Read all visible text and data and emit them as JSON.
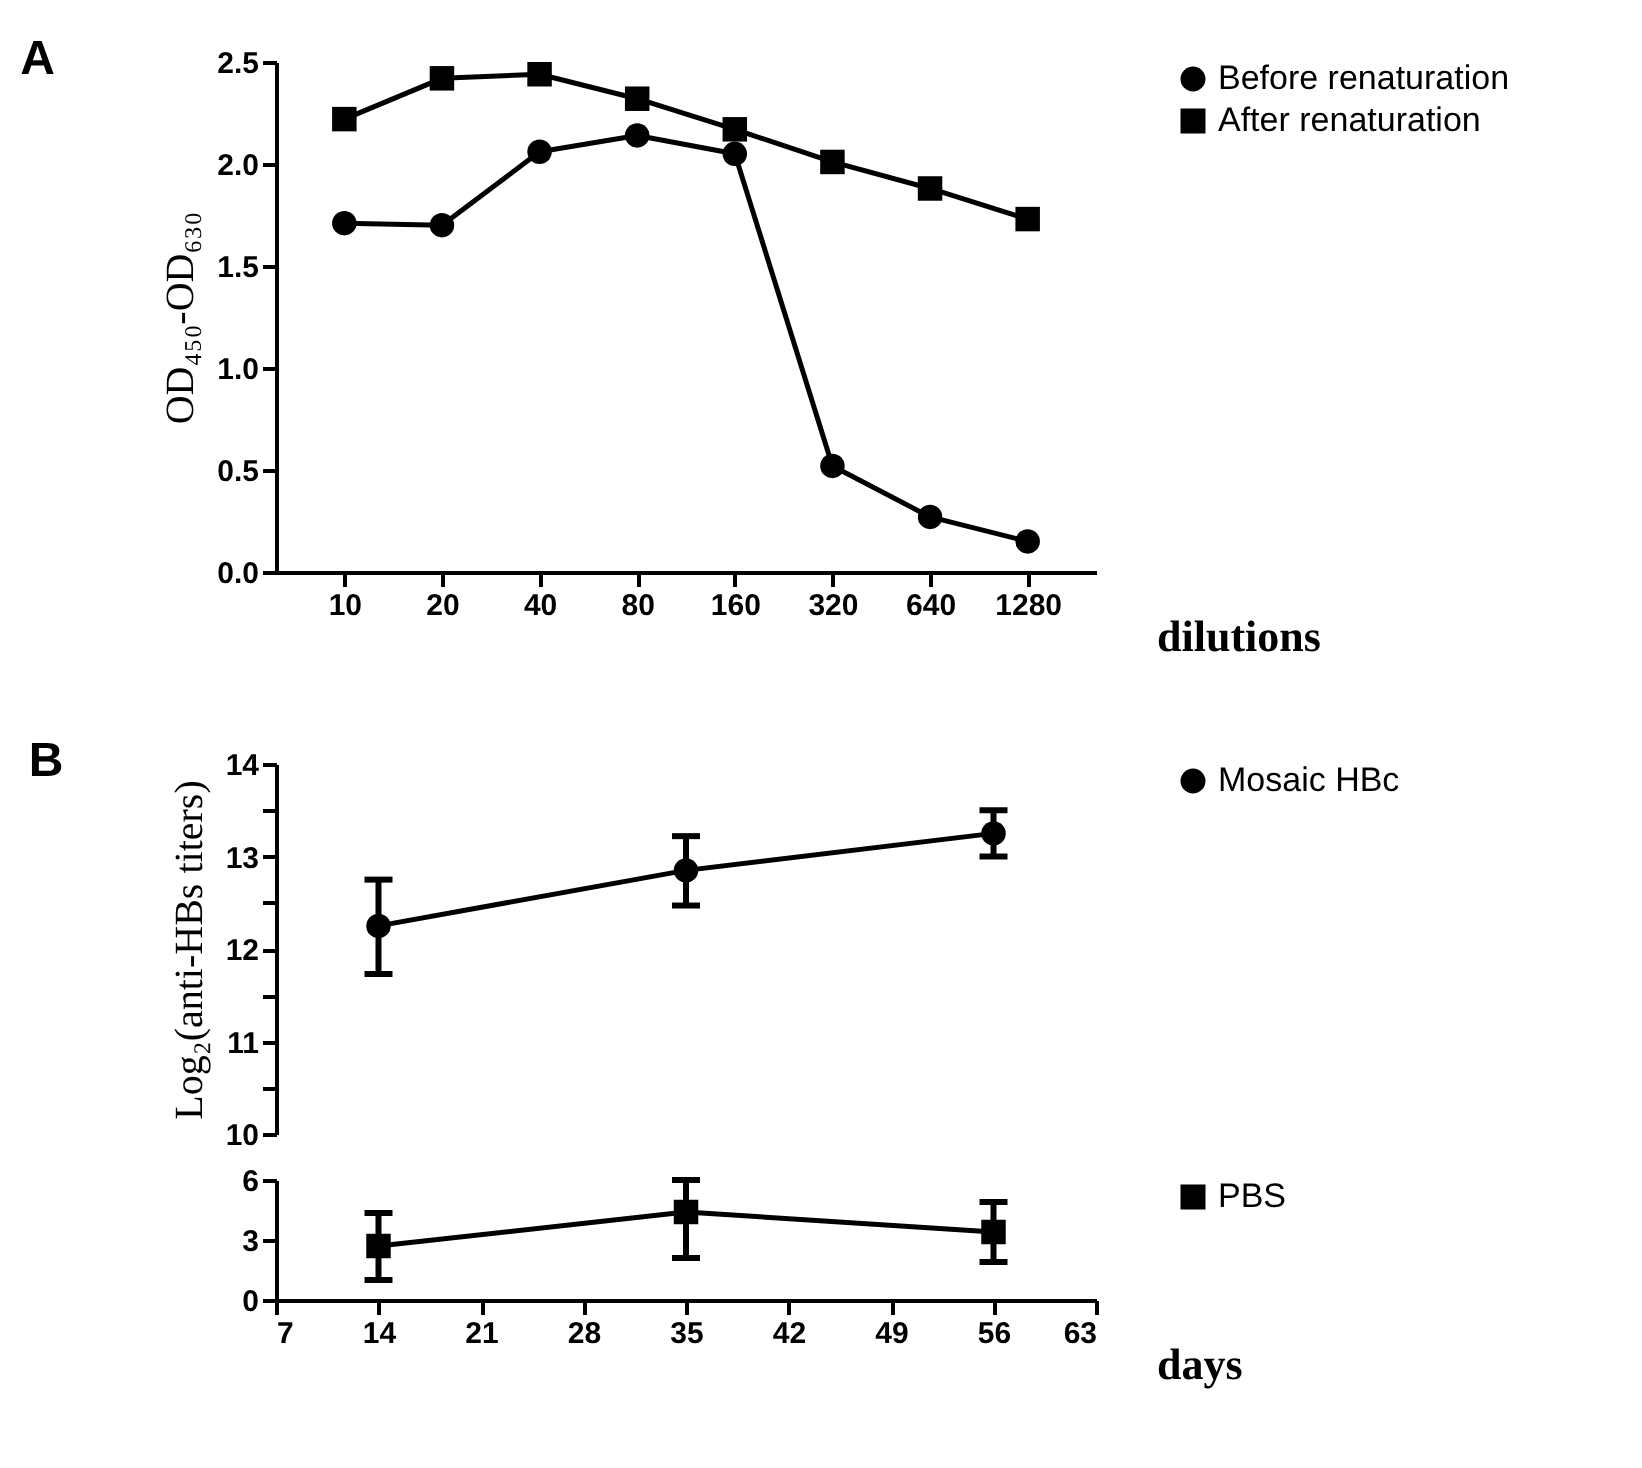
{
  "chart_data": [
    {
      "type": "line",
      "title": "A",
      "xlabel": "dilutions",
      "ylabel": "OD₄₅₀-OD₆₃₀",
      "categories": [
        "10",
        "20",
        "40",
        "80",
        "160",
        "320",
        "640",
        "1280"
      ],
      "ylim": [
        0,
        2.5
      ],
      "yticks": [
        {
          "value": 0,
          "label": "0.0"
        },
        0.5,
        {
          "value": 1,
          "label": "1.0"
        },
        1.5,
        {
          "value": 2,
          "label": "2.0"
        },
        2.5
      ],
      "legend": "top right",
      "grid": false,
      "series": [
        {
          "name": "Before renaturation",
          "color": "#000000",
          "marker": "circle",
          "values": [
            1.71,
            1.7,
            2.06,
            2.14,
            2.05,
            0.52,
            0.27,
            0.15
          ]
        },
        {
          "name": "After renaturation",
          "color": "#000000",
          "marker": "square",
          "values": [
            2.22,
            2.42,
            2.44,
            2.32,
            2.17,
            2.01,
            1.88,
            1.73
          ]
        }
      ]
    },
    {
      "type": "line",
      "title": "B",
      "ylabel": "Log₂(anti-HBs titers)",
      "x": [
        14,
        35,
        56
      ],
      "xlim": [
        7,
        63
      ],
      "ylim": [
        10,
        14
      ],
      "yticks": [
        10,
        {
          "value": 10.5,
          "label": null
        },
        11,
        {
          "value": 11.5,
          "label": null
        },
        12,
        {
          "value": 12.5,
          "label": null
        },
        13,
        {
          "value": 13.5,
          "label": null
        },
        14
      ],
      "tick_labels": "y",
      "legend": "top right",
      "grid": false,
      "series": [
        {
          "name": "Mosaic HBc",
          "color": "#000000",
          "marker": "circle",
          "values": [
            12.25,
            12.85,
            13.25
          ],
          "errors": [
            [
              11.73,
              12.75
            ],
            [
              12.47,
              13.22
            ],
            [
              13.0,
              13.5
            ]
          ]
        }
      ]
    },
    {
      "type": "line",
      "xlabel": "days",
      "x": [
        14,
        35,
        56
      ],
      "xlim": [
        7,
        63
      ],
      "xticks": [
        7,
        14,
        21,
        28,
        35,
        42,
        49,
        56,
        63
      ],
      "ylim": [
        0,
        6
      ],
      "yticks": [
        0,
        3,
        6
      ],
      "legend": "top right",
      "grid": false,
      "series": [
        {
          "name": "PBS",
          "color": "#000000",
          "marker": "square",
          "values": [
            2.7,
            4.4,
            3.4
          ],
          "errors": [
            [
              1.0,
              4.35
            ],
            [
              2.1,
              6.0
            ],
            [
              1.9,
              4.9
            ]
          ]
        }
      ]
    }
  ]
}
